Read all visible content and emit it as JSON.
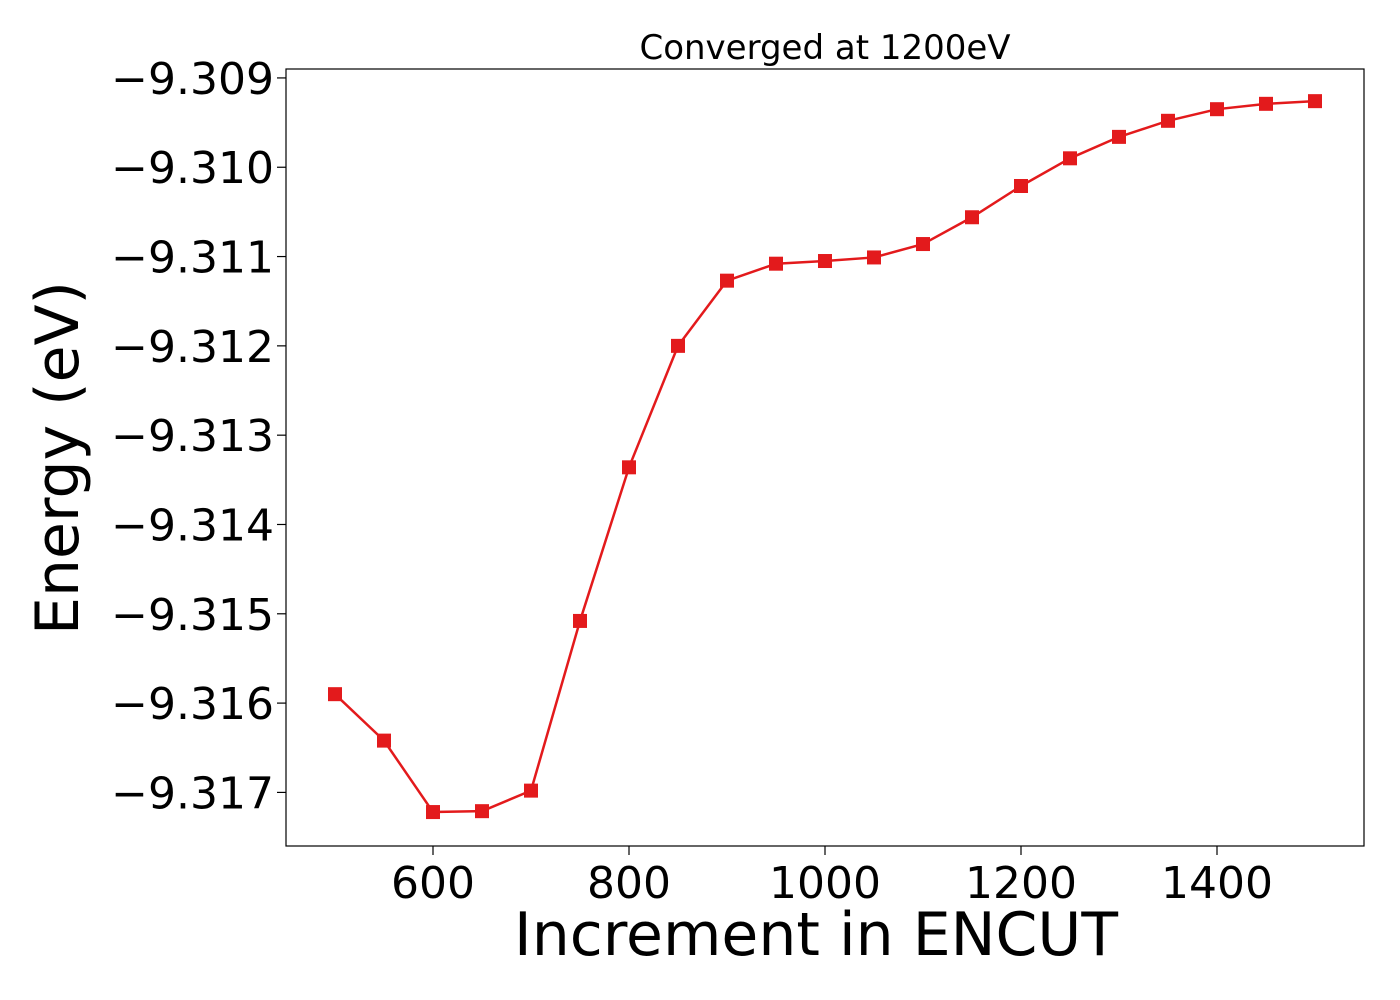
{
  "chart_data": {
    "type": "line",
    "title": "Converged at 1200eV",
    "xlabel": "Increment in ENCUT",
    "ylabel": "Energy (eV)",
    "xlim": [
      450,
      1550
    ],
    "ylim": [
      -9.3176,
      -9.3089
    ],
    "xticks": [
      600,
      800,
      1000,
      1200,
      1400
    ],
    "xtick_labels": [
      "600",
      "800",
      "1000",
      "1200",
      "1400"
    ],
    "yticks": [
      -9.309,
      -9.31,
      -9.311,
      -9.312,
      -9.313,
      -9.314,
      -9.315,
      -9.316,
      -9.317
    ],
    "ytick_labels": [
      "−9.309",
      "−9.310",
      "−9.311",
      "−9.312",
      "−9.313",
      "−9.314",
      "−9.315",
      "−9.316",
      "−9.317"
    ],
    "grid": false,
    "series": [
      {
        "color": "#e31a1c",
        "marker": "square",
        "x": [
          500,
          550,
          600,
          650,
          700,
          750,
          800,
          850,
          900,
          950,
          1000,
          1050,
          1100,
          1150,
          1200,
          1250,
          1300,
          1350,
          1400,
          1450,
          1500
        ],
        "y": [
          -9.3159,
          -9.31642,
          -9.31722,
          -9.31721,
          -9.31698,
          -9.31508,
          -9.31336,
          -9.312,
          -9.31127,
          -9.31108,
          -9.31105,
          -9.31101,
          -9.31086,
          -9.31056,
          -9.31021,
          -9.3099,
          -9.30966,
          -9.30948,
          -9.30935,
          -9.30929,
          -9.30926
        ]
      }
    ]
  }
}
